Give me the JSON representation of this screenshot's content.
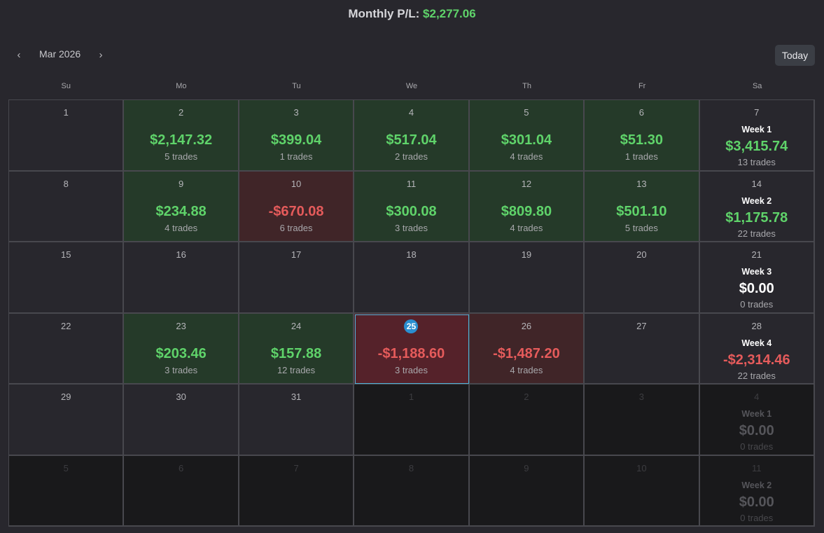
{
  "header": {
    "label": "Monthly P/L:",
    "value": "$2,277.06"
  },
  "nav": {
    "prev_icon": "‹",
    "next_icon": "›",
    "month": "Mar 2026",
    "today_label": "Today"
  },
  "weekdays": [
    "Su",
    "Mo",
    "Tu",
    "We",
    "Th",
    "Fr",
    "Sa"
  ],
  "colors": {
    "profit": "#5fd36a",
    "loss": "#e55b5b",
    "profit_bg": "#253a29",
    "loss_bg": "#402528",
    "today_badge": "#2b8fd1"
  },
  "weeks": [
    {
      "days": [
        {
          "num": "1"
        },
        {
          "num": "2",
          "pl": "$2,147.32",
          "trades": "5 trades",
          "dir": "pos"
        },
        {
          "num": "3",
          "pl": "$399.04",
          "trades": "1 trades",
          "dir": "pos"
        },
        {
          "num": "4",
          "pl": "$517.04",
          "trades": "2 trades",
          "dir": "pos"
        },
        {
          "num": "5",
          "pl": "$301.04",
          "trades": "4 trades",
          "dir": "pos"
        },
        {
          "num": "6",
          "pl": "$51.30",
          "trades": "1 trades",
          "dir": "pos"
        }
      ],
      "summary": {
        "num": "7",
        "label": "Week 1",
        "pl": "$3,415.74",
        "trades": "13 trades",
        "dir": "pos"
      }
    },
    {
      "days": [
        {
          "num": "8"
        },
        {
          "num": "9",
          "pl": "$234.88",
          "trades": "4 trades",
          "dir": "pos"
        },
        {
          "num": "10",
          "pl": "-$670.08",
          "trades": "6 trades",
          "dir": "neg"
        },
        {
          "num": "11",
          "pl": "$300.08",
          "trades": "3 trades",
          "dir": "pos"
        },
        {
          "num": "12",
          "pl": "$809.80",
          "trades": "4 trades",
          "dir": "pos"
        },
        {
          "num": "13",
          "pl": "$501.10",
          "trades": "5 trades",
          "dir": "pos"
        }
      ],
      "summary": {
        "num": "14",
        "label": "Week 2",
        "pl": "$1,175.78",
        "trades": "22 trades",
        "dir": "pos"
      }
    },
    {
      "days": [
        {
          "num": "15"
        },
        {
          "num": "16"
        },
        {
          "num": "17"
        },
        {
          "num": "18"
        },
        {
          "num": "19"
        },
        {
          "num": "20"
        }
      ],
      "summary": {
        "num": "21",
        "label": "Week 3",
        "pl": "$0.00",
        "trades": "0 trades",
        "dir": "zero"
      }
    },
    {
      "days": [
        {
          "num": "22"
        },
        {
          "num": "23",
          "pl": "$203.46",
          "trades": "3 trades",
          "dir": "pos"
        },
        {
          "num": "24",
          "pl": "$157.88",
          "trades": "12 trades",
          "dir": "pos"
        },
        {
          "num": "25",
          "pl": "-$1,188.60",
          "trades": "3 trades",
          "dir": "neg",
          "today": true
        },
        {
          "num": "26",
          "pl": "-$1,487.20",
          "trades": "4 trades",
          "dir": "neg"
        },
        {
          "num": "27"
        }
      ],
      "summary": {
        "num": "28",
        "label": "Week 4",
        "pl": "-$2,314.46",
        "trades": "22 trades",
        "dir": "neg"
      }
    },
    {
      "days": [
        {
          "num": "29"
        },
        {
          "num": "30"
        },
        {
          "num": "31"
        },
        {
          "num": "1",
          "other": true
        },
        {
          "num": "2",
          "other": true
        },
        {
          "num": "3",
          "other": true
        }
      ],
      "summary": {
        "num": "4",
        "label": "Week 1",
        "pl": "$0.00",
        "trades": "0 trades",
        "dir": "zero",
        "other": true
      }
    },
    {
      "days": [
        {
          "num": "5",
          "other": true
        },
        {
          "num": "6",
          "other": true
        },
        {
          "num": "7",
          "other": true
        },
        {
          "num": "8",
          "other": true
        },
        {
          "num": "9",
          "other": true
        },
        {
          "num": "10",
          "other": true
        }
      ],
      "summary": {
        "num": "11",
        "label": "Week 2",
        "pl": "$0.00",
        "trades": "0 trades",
        "dir": "zero",
        "other": true
      }
    }
  ]
}
